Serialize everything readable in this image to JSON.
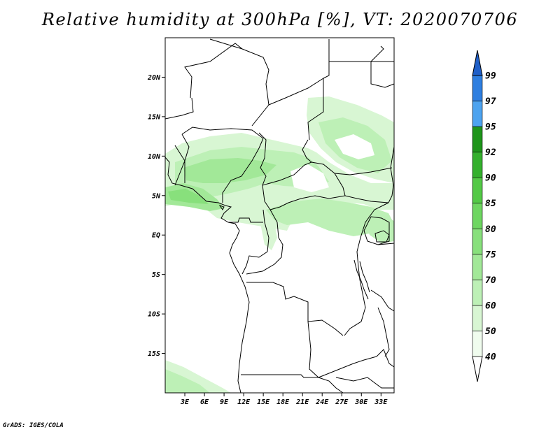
{
  "title": "Relative humidity at 300hPa [%], VT: 2020070706",
  "credit": "GrADS: IGES/COLA",
  "map": {
    "lon_range": [
      0,
      35
    ],
    "lat_range": [
      -20,
      25
    ],
    "x_ticks": [
      "3E",
      "6E",
      "9E",
      "12E",
      "15E",
      "18E",
      "21E",
      "24E",
      "27E",
      "30E",
      "33E"
    ],
    "y_ticks": [
      "20N",
      "15N",
      "10N",
      "5N",
      "EQ",
      "5S",
      "10S",
      "15S"
    ]
  },
  "colorbar": {
    "levels": [
      "40",
      "50",
      "60",
      "70",
      "75",
      "80",
      "85",
      "90",
      "92",
      "95",
      "97",
      "99"
    ],
    "colors": [
      "#f0fcee",
      "#d8f6d3",
      "#bdf0b6",
      "#a2e898",
      "#88e07c",
      "#6ed661",
      "#53c946",
      "#34b02d",
      "#1e951a",
      "#4da3ef",
      "#2f7fe0",
      "#1f5fc8"
    ]
  }
}
